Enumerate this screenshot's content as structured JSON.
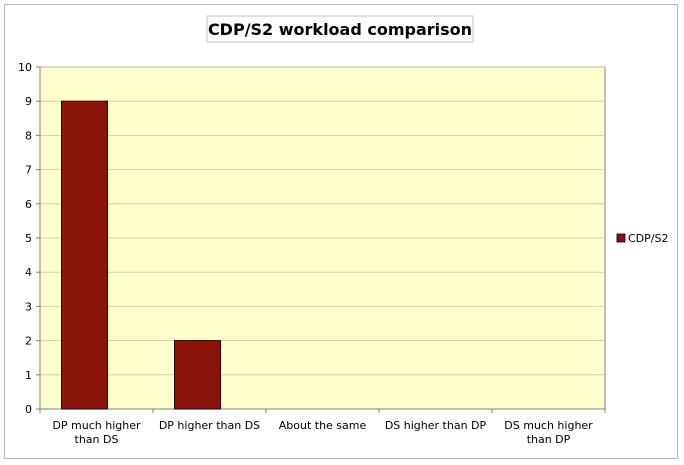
{
  "chart_data": {
    "type": "bar",
    "title": "CDP/S2 workload comparison",
    "categories": [
      [
        "DP much higher",
        "than DS"
      ],
      [
        "DP higher than DS"
      ],
      [
        "About the same"
      ],
      [
        "DS higher than DP"
      ],
      [
        "DS much higher",
        "than DP"
      ]
    ],
    "series": [
      {
        "name": "CDP/S2",
        "values": [
          9,
          2,
          0,
          0,
          0
        ],
        "color": "#8b1309"
      }
    ],
    "ylim": [
      0,
      10
    ],
    "yticks": [
      0,
      1,
      2,
      3,
      4,
      5,
      6,
      7,
      8,
      9,
      10
    ],
    "grid": true,
    "legend_position": "right",
    "plot_background": "#ffffcc"
  }
}
